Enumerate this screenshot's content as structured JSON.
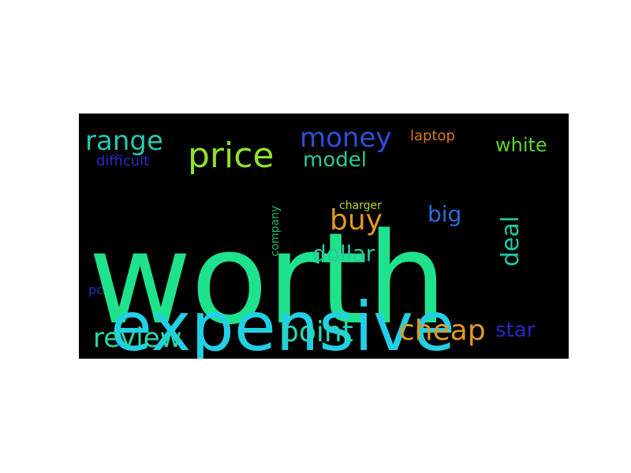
{
  "cloud": {
    "background": "#000000",
    "words": {
      "worth": {
        "text": "worth",
        "color": "#1fe28d"
      },
      "expensive": {
        "text": "expensive",
        "color": "#22d0e6"
      },
      "price": {
        "text": "price",
        "color": "#8fe02a"
      },
      "money": {
        "text": "money",
        "color": "#2d4fd8"
      },
      "range": {
        "text": "range",
        "color": "#27c8b0"
      },
      "laptop": {
        "text": "laptop",
        "color": "#d87a1a"
      },
      "white": {
        "text": "white",
        "color": "#5dd62a"
      },
      "model": {
        "text": "model",
        "color": "#2bc79a"
      },
      "difficult": {
        "text": "difficult",
        "color": "#2a2ac2"
      },
      "buy": {
        "text": "buy",
        "color": "#e19a1e"
      },
      "charger": {
        "text": "charger",
        "color": "#b5d62a"
      },
      "big": {
        "text": "big",
        "color": "#2f6ad6"
      },
      "deal": {
        "text": "deal",
        "color": "#22c9a8"
      },
      "company": {
        "text": "company",
        "color": "#1fb86a"
      },
      "dollar": {
        "text": "dollar",
        "color": "#27c8a0"
      },
      "pc": {
        "text": "pc",
        "color": "#2a2ab8"
      },
      "review": {
        "text": "review",
        "color": "#2ad6a6"
      },
      "point": {
        "text": "point",
        "color": "#2ad6b0"
      },
      "cheap": {
        "text": "cheap",
        "color": "#e09a22"
      },
      "star": {
        "text": "star",
        "color": "#2727c2"
      }
    }
  }
}
